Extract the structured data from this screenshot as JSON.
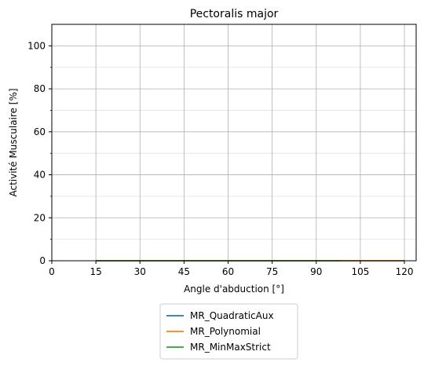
{
  "chart_data": {
    "type": "line",
    "title": "Pectoralis major",
    "xlabel": "Angle d'abduction [°]",
    "ylabel": "Activité Musculaire [%]",
    "xlim": [
      0,
      124
    ],
    "ylim": [
      0,
      110
    ],
    "xticks": [
      0,
      15,
      30,
      45,
      60,
      75,
      90,
      105,
      120
    ],
    "yticks": [
      0,
      20,
      40,
      60,
      80,
      100
    ],
    "grid": true,
    "minor_y_grid": true,
    "legend_position": "below",
    "series": [
      {
        "name": "MR_QuadraticAux",
        "color": "#1f77b4",
        "x": [
          15,
          120
        ],
        "y": [
          0,
          0
        ]
      },
      {
        "name": "MR_Polynomial",
        "color": "#ff7f0e",
        "x": [
          15,
          120
        ],
        "y": [
          0,
          0
        ]
      },
      {
        "name": "MR_MinMaxStrict",
        "color": "#2ca02c",
        "x": [
          15,
          98
        ],
        "y": [
          0,
          0
        ]
      }
    ]
  }
}
